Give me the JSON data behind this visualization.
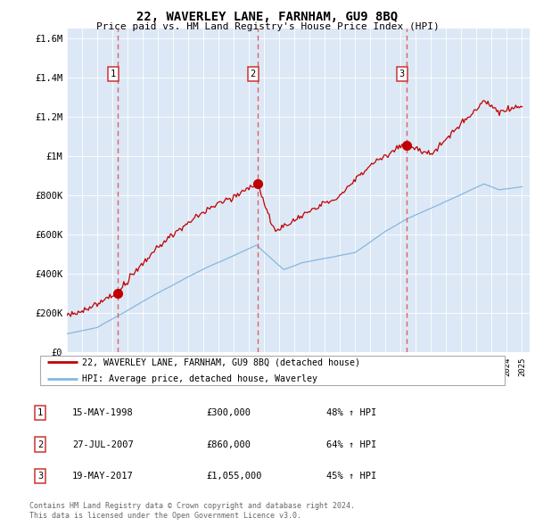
{
  "title": "22, WAVERLEY LANE, FARNHAM, GU9 8BQ",
  "subtitle": "Price paid vs. HM Land Registry's House Price Index (HPI)",
  "plot_bg_color": "#dce8f5",
  "yticks": [
    0,
    200000,
    400000,
    600000,
    800000,
    1000000,
    1200000,
    1400000,
    1600000
  ],
  "ytick_labels": [
    "£0",
    "£200K",
    "£400K",
    "£600K",
    "£800K",
    "£1M",
    "£1.2M",
    "£1.4M",
    "£1.6M"
  ],
  "hpi_color": "#85b8e0",
  "price_color": "#c00000",
  "sale_dates": [
    1998.37,
    2007.57,
    2017.38
  ],
  "sale_prices": [
    300000,
    860000,
    1055000
  ],
  "sale_labels": [
    "1",
    "2",
    "3"
  ],
  "vline_color": "#e06060",
  "legend_line1": "22, WAVERLEY LANE, FARNHAM, GU9 8BQ (detached house)",
  "legend_line2": "HPI: Average price, detached house, Waverley",
  "table_entries": [
    {
      "num": "1",
      "date": "15-MAY-1998",
      "price": "£300,000",
      "change": "48% ↑ HPI"
    },
    {
      "num": "2",
      "date": "27-JUL-2007",
      "price": "£860,000",
      "change": "64% ↑ HPI"
    },
    {
      "num": "3",
      "date": "19-MAY-2017",
      "price": "£1,055,000",
      "change": "45% ↑ HPI"
    }
  ],
  "footnote1": "Contains HM Land Registry data © Crown copyright and database right 2024.",
  "footnote2": "This data is licensed under the Open Government Licence v3.0."
}
